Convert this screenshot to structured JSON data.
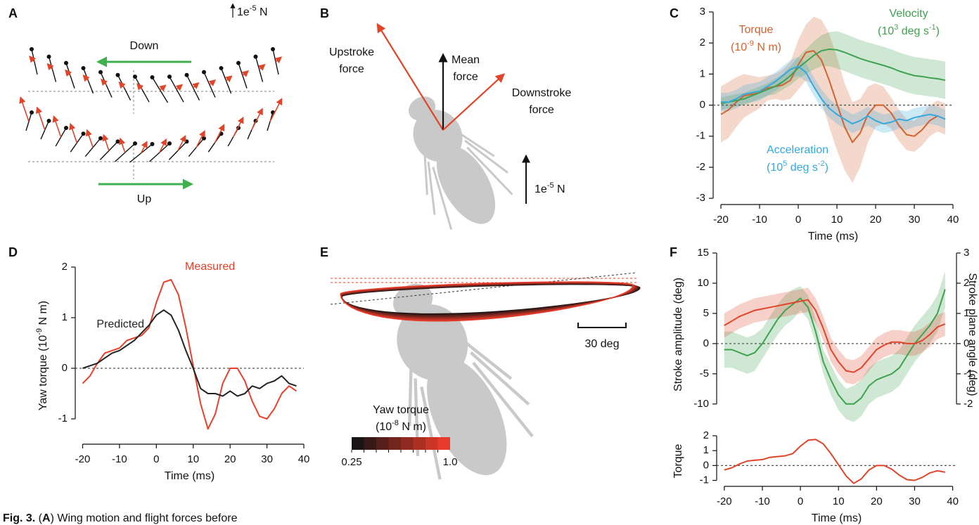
{
  "panel_labels": [
    "A",
    "B",
    "C",
    "D",
    "E",
    "F"
  ],
  "panel_a": {
    "scale": [
      "1e",
      {
        "sup": "-5"
      },
      " N"
    ],
    "down": "Down",
    "up": "Up"
  },
  "panel_b": {
    "upstroke": [
      "Upstroke",
      "force"
    ],
    "mean": [
      "Mean",
      "force"
    ],
    "downstroke": [
      "Downstroke",
      "force"
    ],
    "scale": [
      "1e",
      {
        "sup": "-5"
      },
      " N"
    ]
  },
  "panel_e": {
    "colorbar_title": "Yaw torque",
    "colorbar_units": [
      "(10",
      {
        "sup": "-8"
      },
      " N m)"
    ],
    "colorbar_ticks": [
      "0.25",
      "1.0"
    ],
    "scale": "30 deg"
  },
  "caption": [
    {
      "b": "Fig. 3."
    },
    " (",
    {
      "b": "A"
    },
    ") Wing motion and flight forces before"
  ],
  "chart_data": [
    {
      "type": "line",
      "x": [
        -20,
        -18,
        -16,
        -14,
        -12,
        -10,
        -8,
        -6,
        -4,
        -2,
        0,
        2,
        4,
        6,
        8,
        10,
        12,
        14,
        16,
        18,
        20,
        22,
        24,
        26,
        28,
        30,
        32,
        34,
        36,
        38
      ],
      "xlim": [
        -22,
        40
      ],
      "xticks": [
        -20,
        -10,
        0,
        10,
        20,
        30,
        40
      ],
      "ylim": [
        -3.2,
        3
      ],
      "yticks": [
        -3,
        -2,
        -1,
        0,
        1,
        2,
        3
      ],
      "xlabel": "Time (ms)",
      "series": [
        {
          "name": "Torque",
          "units": [
            "(10",
            {
              "sup": "-9"
            },
            " N m)"
          ],
          "color": "#d4622f",
          "values": [
            -0.3,
            -0.15,
            0.1,
            0.3,
            0.35,
            0.4,
            0.55,
            0.6,
            0.65,
            0.8,
            1.3,
            1.7,
            1.75,
            1.45,
            0.8,
            0.05,
            -0.7,
            -1.2,
            -0.9,
            -0.3,
            0,
            0,
            -0.25,
            -0.65,
            -0.95,
            -1,
            -0.8,
            -0.5,
            -0.35,
            -0.45
          ],
          "error": [
            0.9,
            0.9,
            0.8,
            0.7,
            0.6,
            0.5,
            0.4,
            0.4,
            0.5,
            0.6,
            0.8,
            0.9,
            1.1,
            1.3,
            1.5,
            1.5,
            1.4,
            1.3,
            1.1,
            0.9,
            0.7,
            0.6,
            0.5,
            0.5,
            0.5,
            0.5,
            0.5,
            0.5,
            0.5,
            0.5
          ]
        },
        {
          "name": "Velocity",
          "units": [
            "(10",
            {
              "sup": "3"
            },
            " deg s",
            {
              "sup": "-1"
            },
            ")"
          ],
          "color": "#3fa24f",
          "values": [
            0.05,
            0.1,
            0.15,
            0.2,
            0.3,
            0.4,
            0.5,
            0.6,
            0.75,
            0.95,
            1.2,
            1.4,
            1.6,
            1.75,
            1.8,
            1.78,
            1.7,
            1.6,
            1.5,
            1.42,
            1.35,
            1.28,
            1.2,
            1.1,
            1.02,
            0.95,
            0.92,
            0.88,
            0.85,
            0.8
          ],
          "error": [
            0.2,
            0.2,
            0.2,
            0.2,
            0.2,
            0.2,
            0.2,
            0.25,
            0.25,
            0.3,
            0.35,
            0.4,
            0.45,
            0.5,
            0.55,
            0.6,
            0.6,
            0.6,
            0.6,
            0.6,
            0.6,
            0.6,
            0.6,
            0.6,
            0.6,
            0.6,
            0.6,
            0.6,
            0.6,
            0.6
          ]
        },
        {
          "name": "Acceleration",
          "units": [
            "(10",
            {
              "sup": "5"
            },
            " deg s",
            {
              "sup": "-2"
            },
            ")"
          ],
          "color": "#35a9dd",
          "values": [
            0.1,
            0.1,
            0.2,
            0.35,
            0.4,
            0.45,
            0.6,
            0.75,
            0.95,
            1.15,
            1.25,
            1.05,
            0.6,
            0.2,
            -0.1,
            -0.3,
            -0.45,
            -0.6,
            -0.5,
            -0.35,
            -0.5,
            -0.6,
            -0.55,
            -0.45,
            -0.5,
            -0.4,
            -0.35,
            -0.3,
            -0.35,
            -0.45
          ],
          "error": [
            0.3,
            0.3,
            0.3,
            0.3,
            0.3,
            0.3,
            0.3,
            0.3,
            0.3,
            0.3,
            0.3,
            0.3,
            0.3,
            0.3,
            0.3,
            0.3,
            0.3,
            0.3,
            0.3,
            0.3,
            0.3,
            0.3,
            0.3,
            0.3,
            0.3,
            0.3,
            0.3,
            0.3,
            0.3,
            0.3
          ]
        }
      ]
    },
    {
      "type": "line",
      "x": [
        -20,
        -18,
        -16,
        -14,
        -12,
        -10,
        -8,
        -6,
        -4,
        -2,
        0,
        2,
        4,
        6,
        8,
        10,
        12,
        14,
        16,
        18,
        20,
        22,
        24,
        26,
        28,
        30,
        32,
        34,
        36,
        38
      ],
      "xlim": [
        -22,
        40
      ],
      "xticks": [
        -20,
        -10,
        0,
        10,
        20,
        30,
        40
      ],
      "ylim": [
        -1.5,
        2
      ],
      "yticks": [
        -1,
        0,
        1,
        2
      ],
      "xlabel": "Time (ms)",
      "ylabel": [
        "Yaw torque (10",
        {
          "sup": "-9"
        },
        " N m)"
      ],
      "series": [
        {
          "name": "Measured",
          "color": "#e8402a",
          "values": [
            -0.3,
            -0.15,
            0.1,
            0.3,
            0.35,
            0.4,
            0.55,
            0.6,
            0.65,
            0.8,
            1.3,
            1.7,
            1.75,
            1.45,
            0.8,
            0.05,
            -0.7,
            -1.2,
            -0.9,
            -0.3,
            0,
            0,
            -0.25,
            -0.65,
            -0.95,
            -1,
            -0.8,
            -0.5,
            -0.35,
            -0.45
          ]
        },
        {
          "name": "Predicted",
          "color": "#222222",
          "values": [
            0,
            0.05,
            0.1,
            0.2,
            0.3,
            0.35,
            0.45,
            0.55,
            0.7,
            0.85,
            1.05,
            1.15,
            1.05,
            0.75,
            0.35,
            0,
            -0.4,
            -0.5,
            -0.5,
            -0.55,
            -0.45,
            -0.55,
            -0.5,
            -0.35,
            -0.4,
            -0.3,
            -0.25,
            -0.15,
            -0.3,
            -0.35
          ]
        }
      ]
    },
    {
      "type": "line",
      "x": [
        -20,
        -18,
        -16,
        -14,
        -12,
        -10,
        -8,
        -6,
        -4,
        -2,
        0,
        2,
        4,
        6,
        8,
        10,
        12,
        14,
        16,
        18,
        20,
        22,
        24,
        26,
        28,
        30,
        32,
        34,
        36,
        38
      ],
      "xlim": [
        -22,
        41
      ],
      "ylim": [
        -12,
        15
      ],
      "yticks": [
        -10,
        -5,
        0,
        5,
        10,
        15
      ],
      "y2lim": [
        -2.4,
        3
      ],
      "y2ticks": [
        -2,
        -1,
        0,
        1,
        2,
        3
      ],
      "ylabel": [
        "Stroke amplitude (deg)"
      ],
      "y2label": [
        "Stroke plane angle (deg)"
      ],
      "series": [
        {
          "color": "#3fa24f",
          "values": [
            -1,
            -1,
            -1.5,
            -2,
            -1.5,
            0,
            2,
            4,
            5.5,
            6.5,
            7.5,
            6,
            2,
            -3,
            -6,
            -8.5,
            -10,
            -10,
            -9,
            -7,
            -6,
            -5.5,
            -5,
            -4,
            -2,
            0,
            1.5,
            3,
            5,
            9
          ],
          "error": [
            3,
            3,
            3,
            3,
            3,
            2.5,
            2.5,
            2.5,
            2.5,
            2.5,
            2,
            2,
            2,
            2,
            2.5,
            2.5,
            2.5,
            3,
            3,
            3,
            3,
            3,
            3,
            3,
            3,
            3,
            3,
            3,
            3,
            3
          ]
        },
        {
          "color": "#e0452a",
          "axis": "y2",
          "values": [
            0.6,
            0.75,
            0.9,
            1,
            1.1,
            1.15,
            1.2,
            1.25,
            1.3,
            1.35,
            1.4,
            1.45,
            1.1,
            0.5,
            -0.2,
            -0.6,
            -0.9,
            -0.95,
            -0.8,
            -0.5,
            -0.2,
            -0.05,
            0.05,
            0.05,
            0,
            0,
            0.1,
            0.3,
            0.55,
            0.65
          ],
          "error": [
            0.4,
            0.4,
            0.4,
            0.4,
            0.4,
            0.4,
            0.4,
            0.4,
            0.4,
            0.4,
            0.4,
            0.4,
            0.4,
            0.4,
            0.4,
            0.4,
            0.4,
            0.4,
            0.4,
            0.4,
            0.4,
            0.4,
            0.4,
            0.4,
            0.4,
            0.4,
            0.4,
            0.4,
            0.4,
            0.4
          ]
        }
      ]
    },
    {
      "type": "line",
      "x": [
        -20,
        -18,
        -16,
        -14,
        -12,
        -10,
        -8,
        -6,
        -4,
        -2,
        0,
        2,
        4,
        6,
        8,
        10,
        12,
        14,
        16,
        18,
        20,
        22,
        24,
        26,
        28,
        30,
        32,
        34,
        36,
        38
      ],
      "xlim": [
        -22,
        41
      ],
      "xticks": [
        -20,
        -10,
        0,
        10,
        20,
        30,
        40
      ],
      "ylim": [
        -1.4,
        2
      ],
      "yticks": [
        -1,
        0,
        1,
        2
      ],
      "xlabel": "Time (ms)",
      "ylabel": [
        "Torque"
      ],
      "series": [
        {
          "color": "#e0452a",
          "values": [
            -0.3,
            -0.15,
            0.1,
            0.3,
            0.35,
            0.4,
            0.55,
            0.6,
            0.65,
            0.8,
            1.3,
            1.7,
            1.75,
            1.45,
            0.8,
            0.05,
            -0.7,
            -1.2,
            -0.9,
            -0.3,
            0,
            0,
            -0.25,
            -0.65,
            -0.95,
            -1,
            -0.8,
            -0.5,
            -0.35,
            -0.45
          ]
        }
      ]
    }
  ]
}
